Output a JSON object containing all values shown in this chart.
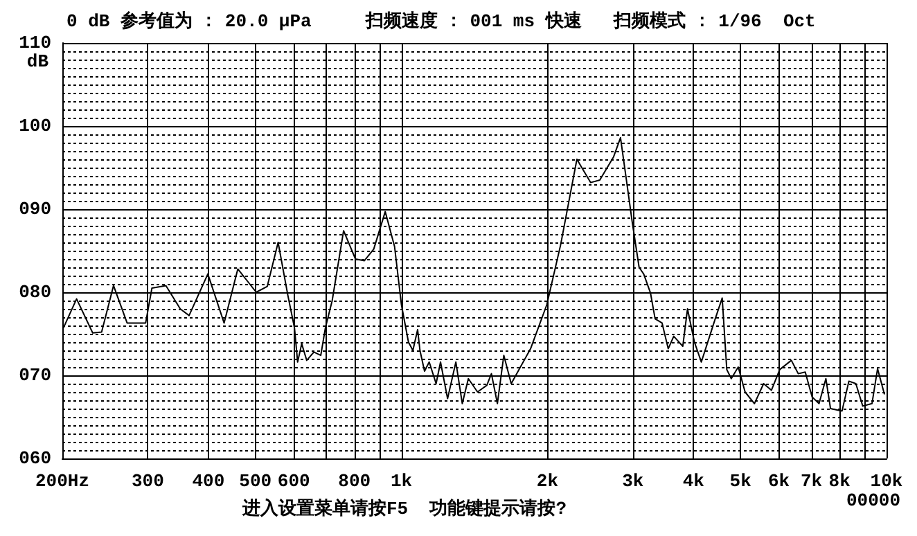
{
  "chart_data": {
    "type": "line",
    "title": "0 dB 参考值为 : 20.0 μPa     扫频速度 : 001 ms 快速   扫频模式 : 1/96  Oct",
    "ylabel": "dB",
    "annotations": [
      "00000",
      "进入设置菜单请按F5  功能键提示请按?"
    ],
    "log": "x",
    "grid": true,
    "marker": "none",
    "line_style": "solid",
    "xlim": [
      200,
      10000
    ],
    "xticks": [
      {
        "value": 200,
        "label": "200Hz"
      },
      300,
      400,
      500,
      600,
      {
        "value": 700,
        "label": null
      },
      800,
      {
        "value": 900,
        "label": null
      },
      {
        "value": 1000,
        "label": "1k"
      },
      {
        "value": 2000,
        "label": "2k"
      },
      {
        "value": 3000,
        "label": "3k"
      },
      {
        "value": 4000,
        "label": "4k"
      },
      {
        "value": 5000,
        "label": "5k"
      },
      {
        "value": 6000,
        "label": "6k"
      },
      {
        "value": 7000,
        "label": "7k"
      },
      {
        "value": 8000,
        "label": "8k"
      },
      {
        "value": 9000,
        "label": null
      },
      {
        "value": 10000,
        "label": "10k"
      }
    ],
    "ylim": [
      60,
      110
    ],
    "yticks": [
      {
        "value": 60,
        "label": "060"
      },
      {
        "value": 70,
        "label": "070"
      },
      {
        "value": 80,
        "label": "080"
      },
      {
        "value": 90,
        "label": "090"
      },
      100,
      110
    ],
    "x": [
      201,
      214,
      231,
      241,
      255,
      272,
      297,
      306,
      327,
      350,
      365,
      399,
      431,
      460,
      502,
      529,
      557,
      583,
      602,
      611,
      623,
      638,
      660,
      682,
      697,
      720,
      760,
      804,
      839,
      877,
      926,
      968,
      1000,
      1034,
      1056,
      1080,
      1092,
      1116,
      1141,
      1179,
      1204,
      1245,
      1295,
      1335,
      1374,
      1435,
      1500,
      1533,
      1577,
      1626,
      1684,
      1846,
      1994,
      2129,
      2300,
      2455,
      2564,
      2738,
      2829,
      2892,
      2990,
      3090,
      3158,
      3262,
      3334,
      3446,
      3548,
      3642,
      3802,
      3888,
      4018,
      4152,
      4435,
      4584,
      4685,
      4786,
      4947,
      5110,
      5342,
      5580,
      5790,
      6024,
      6365,
      6577,
      6799,
      7025,
      7259,
      7499,
      7666,
      8095,
      8364,
      8645,
      8933,
      9333,
      9584,
      9902
    ],
    "series": [
      {
        "color": "#000000",
        "values": [
          75.7,
          79.2,
          75.1,
          75.2,
          80.8,
          76.3,
          76.3,
          80.5,
          80.8,
          78,
          77.2,
          82.2,
          76.3,
          82.8,
          80,
          80.7,
          86,
          79.7,
          75.7,
          71.6,
          73.8,
          71.8,
          72.8,
          72.4,
          75.7,
          79,
          87.4,
          84,
          83.8,
          85.2,
          89.7,
          85.5,
          78.5,
          74,
          73,
          75.5,
          73,
          70.5,
          71.6,
          69,
          71.6,
          67.2,
          71.6,
          66.6,
          69.6,
          68,
          68.8,
          70.2,
          66.6,
          72.4,
          69,
          73.2,
          78.5,
          85.7,
          96,
          93.2,
          93.5,
          96.3,
          98.6,
          94.6,
          88.5,
          83,
          82.2,
          79.9,
          76.8,
          76.3,
          73.2,
          74.7,
          73.5,
          78,
          74,
          71.6,
          76.8,
          79.3,
          70.7,
          69.6,
          71,
          68,
          66.6,
          69,
          68.2,
          70.7,
          71.8,
          70.2,
          70.4,
          67.4,
          66.6,
          69.6,
          66,
          65.7,
          69.3,
          69,
          66.3,
          66.6,
          70.8,
          67.7
        ]
      }
    ]
  }
}
